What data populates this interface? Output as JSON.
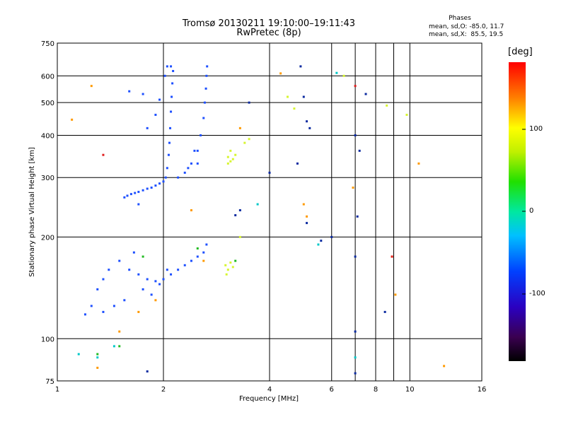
{
  "header": {
    "title": "Tromsø 20130211 19:10:00–19:11:43",
    "subtitle": "RwPretec (8p)"
  },
  "stats": {
    "heading": "Phases",
    "line1": "mean, sd,O: -85.0, 11.7",
    "line2": "mean, sd,X:  85.5, 19.5"
  },
  "colorbar": {
    "label": "[deg]",
    "ticks": [
      "100",
      "0",
      "-100"
    ]
  },
  "chart_data": {
    "type": "scatter",
    "title": "Tromsø 20130211 19:10:00–19:11:43",
    "subtitle": "RwPretec (8p)",
    "xlabel": "Frequency [MHz]",
    "ylabel": "Stationary phase Virtual Height [km]",
    "x_scale": "log",
    "y_scale": "log",
    "xlim": [
      1,
      16
    ],
    "ylim": [
      75,
      750
    ],
    "x_ticks": [
      "1",
      "2",
      "4",
      "6",
      "8",
      "10",
      "16"
    ],
    "y_ticks": [
      "75",
      "100",
      "200",
      "300",
      "400",
      "500",
      "600",
      "750"
    ],
    "grid": true,
    "color_scale": "phase [deg], range about -180 to 180",
    "series": [
      {
        "values": [
          [
            1.55,
            262
          ],
          [
            1.58,
            265
          ],
          [
            1.62,
            268
          ],
          [
            1.66,
            270
          ],
          [
            1.7,
            272
          ],
          [
            1.75,
            275
          ],
          [
            1.8,
            278
          ],
          [
            1.85,
            280
          ],
          [
            1.9,
            284
          ],
          [
            1.95,
            288
          ],
          [
            2.0,
            292
          ],
          [
            2.03,
            300
          ],
          [
            2.05,
            320
          ],
          [
            2.07,
            350
          ],
          [
            2.08,
            380
          ],
          [
            2.09,
            420
          ],
          [
            2.1,
            470
          ],
          [
            2.11,
            520
          ],
          [
            2.12,
            570
          ],
          [
            2.13,
            620
          ],
          [
            2.02,
            600
          ],
          [
            2.05,
            640
          ],
          [
            2.1,
            640
          ],
          [
            2.2,
            300
          ],
          [
            2.3,
            310
          ],
          [
            2.4,
            330
          ],
          [
            2.5,
            360
          ],
          [
            2.55,
            400
          ],
          [
            2.6,
            450
          ],
          [
            2.62,
            500
          ],
          [
            2.64,
            550
          ],
          [
            2.65,
            600
          ],
          [
            2.66,
            640
          ],
          [
            2.5,
            330
          ],
          [
            2.45,
            360
          ],
          [
            2.35,
            320
          ],
          [
            1.7,
            250
          ],
          [
            1.8,
            420
          ],
          [
            1.9,
            460
          ],
          [
            1.95,
            510
          ],
          [
            1.6,
            540
          ],
          [
            1.75,
            530
          ],
          [
            1.2,
            118
          ],
          [
            1.25,
            125
          ],
          [
            1.3,
            140
          ],
          [
            1.35,
            150
          ],
          [
            1.4,
            160
          ],
          [
            1.5,
            170
          ],
          [
            1.6,
            160
          ],
          [
            1.7,
            155
          ],
          [
            1.8,
            150
          ],
          [
            1.9,
            148
          ],
          [
            2.0,
            150
          ],
          [
            2.1,
            155
          ],
          [
            2.2,
            160
          ],
          [
            2.3,
            165
          ],
          [
            2.4,
            170
          ],
          [
            2.5,
            175
          ],
          [
            2.6,
            180
          ],
          [
            2.65,
            190
          ],
          [
            1.75,
            140
          ],
          [
            1.85,
            135
          ],
          [
            1.95,
            145
          ],
          [
            2.05,
            160
          ],
          [
            1.65,
            180
          ],
          [
            1.55,
            130
          ],
          [
            1.45,
            125
          ],
          [
            1.35,
            120
          ]
        ],
        "color": "#1e50ff"
      },
      {
        "values": [
          [
            3.05,
            330
          ],
          [
            3.1,
            335
          ],
          [
            3.15,
            340
          ],
          [
            3.2,
            350
          ],
          [
            3.1,
            360
          ],
          [
            3.05,
            345
          ],
          [
            3.0,
            165
          ],
          [
            3.05,
            160
          ],
          [
            3.1,
            168
          ],
          [
            3.15,
            163
          ],
          [
            3.02,
            155
          ],
          [
            3.4,
            380
          ],
          [
            3.5,
            390
          ],
          [
            3.3,
            200
          ],
          [
            6.5,
            600
          ],
          [
            8.6,
            490
          ],
          [
            9.8,
            460
          ],
          [
            4.5,
            520
          ],
          [
            4.7,
            480
          ]
        ],
        "color": "#d7f531"
      },
      {
        "values": [
          [
            1.5,
            105
          ],
          [
            1.7,
            120
          ],
          [
            1.9,
            130
          ],
          [
            2.4,
            240
          ],
          [
            2.6,
            170
          ],
          [
            1.1,
            445
          ],
          [
            1.25,
            560
          ],
          [
            3.3,
            420
          ],
          [
            8.9,
            175
          ],
          [
            9.1,
            135
          ],
          [
            10.6,
            330
          ],
          [
            12.5,
            83
          ],
          [
            1.3,
            82
          ],
          [
            4.3,
            610
          ],
          [
            5.0,
            250
          ],
          [
            5.1,
            230
          ],
          [
            6.9,
            280
          ]
        ],
        "color": "#ff9a00"
      },
      {
        "values": [
          [
            4.9,
            640
          ],
          [
            5.0,
            520
          ],
          [
            5.1,
            440
          ],
          [
            5.2,
            420
          ],
          [
            4.8,
            330
          ],
          [
            4.0,
            310
          ],
          [
            7.0,
            400
          ],
          [
            7.2,
            360
          ],
          [
            7.1,
            230
          ],
          [
            7.0,
            175
          ],
          [
            7.0,
            105
          ],
          [
            7.0,
            79
          ],
          [
            7.5,
            530
          ],
          [
            5.1,
            220
          ],
          [
            5.6,
            195
          ],
          [
            1.8,
            80
          ],
          [
            3.2,
            232
          ],
          [
            3.3,
            240
          ],
          [
            3.5,
            500
          ],
          [
            6.0,
            200
          ],
          [
            8.5,
            120
          ]
        ],
        "color": "#0b2aa0"
      },
      {
        "values": [
          [
            6.2,
            612
          ],
          [
            7.0,
            88
          ],
          [
            3.7,
            250
          ],
          [
            5.5,
            190
          ],
          [
            1.15,
            90
          ],
          [
            1.3,
            88
          ],
          [
            1.45,
            95
          ]
        ],
        "color": "#00c8c8"
      },
      {
        "values": [
          [
            1.75,
            175
          ],
          [
            2.5,
            185
          ],
          [
            1.3,
            90
          ],
          [
            1.5,
            95
          ],
          [
            3.2,
            170
          ]
        ],
        "color": "#22bb22"
      },
      {
        "values": [
          [
            7.0,
            560
          ],
          [
            8.9,
            175
          ],
          [
            1.35,
            350
          ]
        ],
        "color": "#e02020"
      }
    ]
  }
}
